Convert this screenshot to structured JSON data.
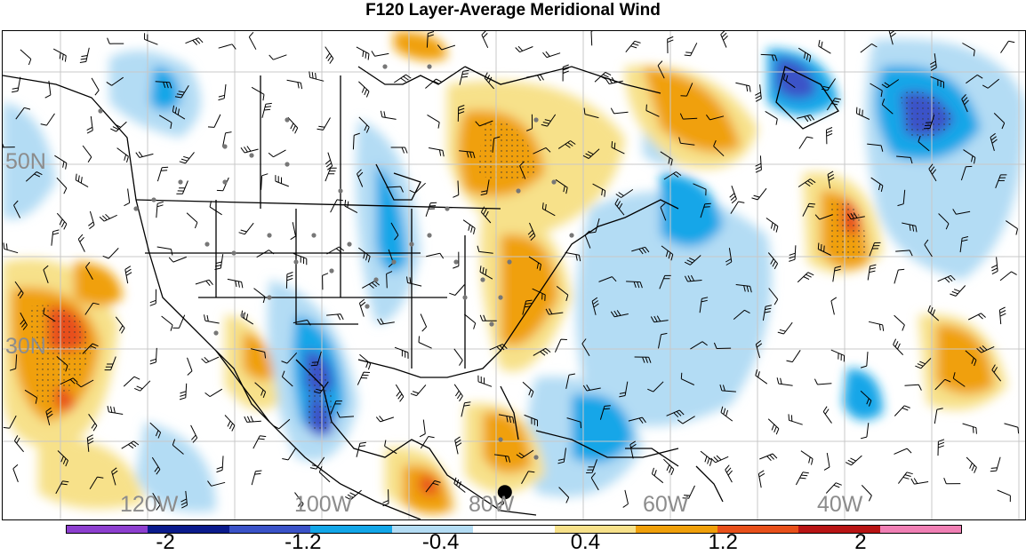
{
  "title": "F120 Layer-Average Meridional Wind",
  "map": {
    "lat_labels": [
      {
        "text": "50N",
        "lat": 50
      },
      {
        "text": "30N",
        "lat": 30
      }
    ],
    "lon_labels": [
      {
        "text": "120W",
        "lon": -120
      },
      {
        "text": "100W",
        "lon": -100
      },
      {
        "text": "80W",
        "lon": -80
      },
      {
        "text": "60W",
        "lon": -60
      },
      {
        "text": "40W",
        "lon": -40
      }
    ],
    "marker": {
      "name": "storm-center-marker",
      "lon": -79,
      "lat": 14.5
    }
  },
  "colorbar": {
    "colors": [
      "#8d3fcf",
      "#0a1a8c",
      "#3a52c8",
      "#12a6e8",
      "#b3dcf4",
      "#ffffff",
      "#f7e18a",
      "#f0a00a",
      "#e8501a",
      "#b81414",
      "#f07fb4"
    ],
    "labels": [
      {
        "text": "-2",
        "value": -2
      },
      {
        "text": "-1.2",
        "value": -1.2
      },
      {
        "text": "-0.4",
        "value": -0.4
      },
      {
        "text": "0.4",
        "value": 0.4
      },
      {
        "text": "1.2",
        "value": 1.2
      },
      {
        "text": "2",
        "value": 2
      }
    ]
  }
}
